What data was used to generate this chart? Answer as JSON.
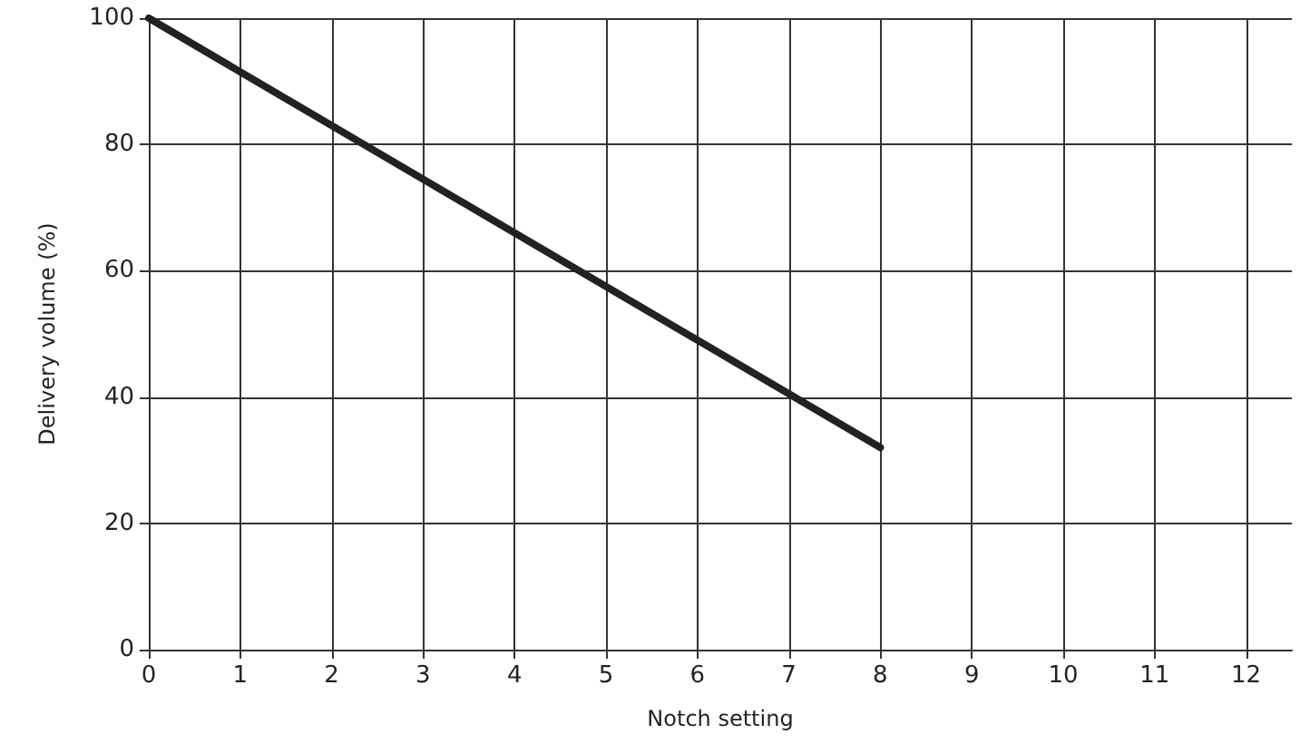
{
  "chart_data": {
    "type": "line",
    "xlabel": "Notch setting",
    "ylabel": "Delivery volume (%)",
    "x": [
      0,
      8
    ],
    "series": [
      {
        "color": "#222222",
        "values": [
          100,
          32
        ]
      }
    ],
    "xlim": [
      0,
      12.5
    ],
    "xticks": [
      0,
      1,
      2,
      3,
      4,
      5,
      6,
      7,
      8,
      9,
      10,
      11,
      12
    ],
    "ylim": [
      0,
      100
    ],
    "yticks": [
      0,
      20,
      40,
      60,
      80,
      100
    ],
    "grid": true,
    "marker": "none",
    "line_style": "solid"
  }
}
